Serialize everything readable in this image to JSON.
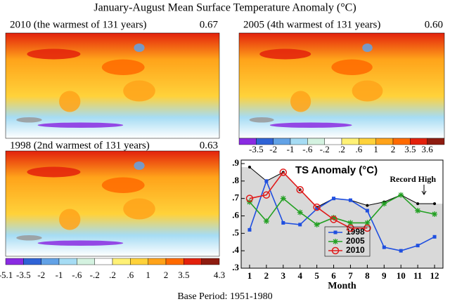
{
  "title": "January-August Mean Surface Temperature Anomaly (°C)",
  "maps": [
    {
      "label": "2010 (the warmest of 131 years)",
      "value": "0.67"
    },
    {
      "label": "2005 (4th warmest of 131 years)",
      "value": "0.60"
    },
    {
      "label": "1998 (2nd warmest of 131 years)",
      "value": "0.63"
    }
  ],
  "colorbars": [
    {
      "colors": [
        "#8a2be2",
        "#2f63d6",
        "#62a2e6",
        "#a6dcf4",
        "#d4f2e0",
        "#ffffff",
        "#fff176",
        "#ffd23a",
        "#ffa31a",
        "#ff6a00",
        "#e3210c",
        "#8e1c10"
      ],
      "labels": [
        "-3.5",
        "-2",
        "-1",
        "-.6",
        "-.2",
        ".2",
        ".6",
        "1",
        "2",
        "3.5",
        "3.6"
      ]
    },
    {
      "colors": [
        "#8a2be2",
        "#2f63d6",
        "#62a2e6",
        "#a6dcf4",
        "#d4f2e0",
        "#ffffff",
        "#fff176",
        "#ffd23a",
        "#ffa31a",
        "#ff6a00",
        "#e3210c",
        "#8e1c10"
      ],
      "labels": [
        "-5.1",
        "-3.5",
        "-2",
        "-1",
        "-.6",
        "-.2",
        ".2",
        ".6",
        "1",
        "2",
        "3.5",
        "4.3"
      ]
    }
  ],
  "chart_data": {
    "type": "line",
    "title": "TS Anomaly (°C)",
    "x_label": "Month",
    "x": [
      1,
      2,
      3,
      4,
      5,
      6,
      7,
      8,
      9,
      10,
      11,
      12
    ],
    "xlim": [
      0.5,
      12.5
    ],
    "xticks": [
      1,
      2,
      3,
      4,
      5,
      6,
      7,
      8,
      9,
      10,
      11,
      12
    ],
    "ylim": [
      0.3,
      0.9
    ],
    "yticks": [
      {
        "value": 0.3,
        "label": ".3"
      },
      {
        "value": 0.4,
        "label": ".4"
      },
      {
        "value": 0.5,
        "label": ".5"
      },
      {
        "value": 0.6,
        "label": ".6"
      },
      {
        "value": 0.7,
        "label": ".7"
      },
      {
        "value": 0.8,
        "label": ".8"
      },
      {
        "value": 0.9,
        "label": ".9"
      }
    ],
    "record_high": {
      "label": "Record High",
      "color": "#000000",
      "fill": "#d9d9d9",
      "values": [
        0.88,
        0.8,
        0.85,
        0.75,
        0.65,
        0.7,
        0.69,
        0.66,
        0.68,
        0.72,
        0.67,
        0.67
      ]
    },
    "series": [
      {
        "name": "1998",
        "color": "#1f4fe0",
        "marker": "square",
        "values": [
          0.52,
          0.8,
          0.56,
          0.55,
          0.64,
          0.7,
          0.69,
          0.63,
          0.42,
          0.4,
          0.43,
          0.48
        ]
      },
      {
        "name": "2005",
        "color": "#22a022",
        "marker": "star",
        "values": [
          0.68,
          0.57,
          0.7,
          0.62,
          0.55,
          0.59,
          0.56,
          0.56,
          0.67,
          0.72,
          0.63,
          0.61
        ]
      },
      {
        "name": "2010",
        "color": "#e01a1a",
        "marker": "circle",
        "values": [
          0.7,
          0.72,
          0.85,
          0.75,
          0.65,
          0.58,
          0.53,
          0.53,
          null,
          null,
          null,
          null
        ]
      }
    ]
  },
  "footer": "Base Period: 1951-1980"
}
